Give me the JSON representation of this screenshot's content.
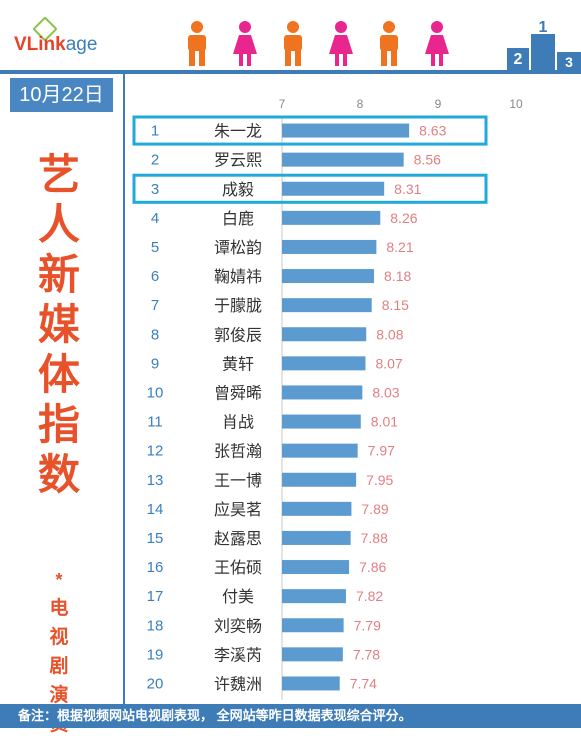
{
  "brand": {
    "logo_main": "VLink",
    "logo_suffix": "age"
  },
  "date": "10月22日",
  "side_title": [
    "艺",
    "人",
    "新",
    "媒",
    "体",
    "指",
    "数"
  ],
  "side_star": "*",
  "side_subtitle": [
    "电",
    "视",
    "剧",
    "演",
    "员"
  ],
  "colors": {
    "bar": "#5b9bd0",
    "value": "#e27f82",
    "rank": "#3a7fbd",
    "highlight": "#21a9d9",
    "title": "#e8522a",
    "male": "#f0731f",
    "female": "#e8268d"
  },
  "people_icons": [
    "male",
    "female",
    "male",
    "female",
    "male",
    "female"
  ],
  "podium_icon": "podium-icon",
  "footer": "备注：根据视频网站电视剧表现，           全网站等昨日数据表现综合评分。",
  "chart_data": {
    "type": "bar",
    "orientation": "horizontal",
    "xlim": [
      7,
      10
    ],
    "ticks": [
      "7",
      "8",
      "9",
      "10"
    ],
    "highlighted_ranks": [
      1,
      3
    ],
    "ranks": [
      "1",
      "2",
      "3",
      "4",
      "5",
      "6",
      "7",
      "8",
      "9",
      "10",
      "11",
      "12",
      "13",
      "14",
      "15",
      "16",
      "17",
      "18",
      "19",
      "20"
    ],
    "categories": [
      "朱一龙",
      "罗云熙",
      "成毅",
      "白鹿",
      "谭松韵",
      "鞠婧祎",
      "于朦胧",
      "郭俊辰",
      "黄轩",
      "曾舜晞",
      "肖战",
      "张哲瀚",
      "王一博",
      "应昊茗",
      "赵露思",
      "王佑硕",
      "付美",
      "刘奕畅",
      "李溪芮",
      "许魏洲"
    ],
    "values": [
      8.63,
      8.56,
      8.31,
      8.26,
      8.21,
      8.18,
      8.15,
      8.08,
      8.07,
      8.03,
      8.01,
      7.97,
      7.95,
      7.89,
      7.88,
      7.86,
      7.82,
      7.79,
      7.78,
      7.74
    ],
    "labels": [
      "8.63",
      "8.56",
      "8.31",
      "8.26",
      "8.21",
      "8.18",
      "8.15",
      "8.08",
      "8.07",
      "8.03",
      "8.01",
      "7.97",
      "7.95",
      "7.89",
      "7.88",
      "7.86",
      "7.82",
      "7.79",
      "7.78",
      "7.74"
    ]
  }
}
